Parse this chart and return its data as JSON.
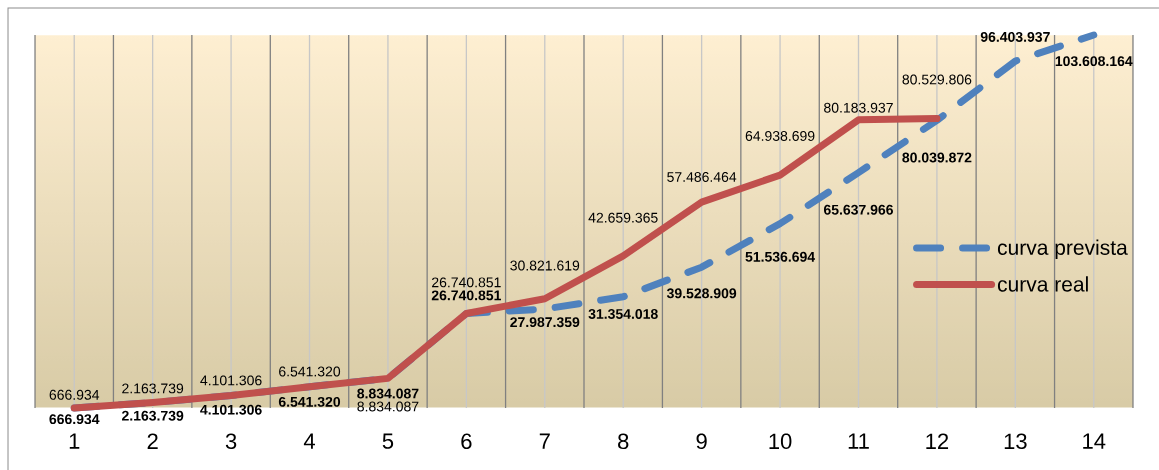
{
  "chart_data": {
    "type": "line",
    "categories": [
      "1",
      "2",
      "3",
      "4",
      "5",
      "6",
      "7",
      "8",
      "9",
      "10",
      "11",
      "12",
      "13",
      "14"
    ],
    "series": [
      {
        "name": "curva prevista",
        "color": "#4f81bd",
        "line_style": "dashed",
        "values": [
          666934,
          2163739,
          4101306,
          6541320,
          8834087,
          26740851,
          27987359,
          31354018,
          39528909,
          51536694,
          65637966,
          80039872,
          96403937,
          103608164
        ],
        "value_labels": [
          "666.934",
          "2.163.739",
          "4.101.306",
          "6.541.320",
          "8.834.087",
          "26.740.851",
          "27.987.359",
          "31.354.018",
          "39.528.909",
          "51.536.694",
          "65.637.966",
          "80.039.872",
          "96.403.937",
          "103.608.164"
        ]
      },
      {
        "name": "curva real",
        "color": "#c0504d",
        "line_style": "solid",
        "values": [
          666934,
          2163739,
          4101306,
          6541320,
          8834087,
          26740851,
          30821619,
          42659365,
          57486464,
          64938699,
          80183937,
          80529806,
          null,
          null
        ],
        "value_labels": [
          "666.934",
          "2.163.739",
          "4.101.306",
          "6.541.320",
          "8.834.087",
          "26.740.851",
          "30.821.619",
          "42.659.365",
          "57.486.464",
          "64.938.699",
          "80.183.937",
          "80.529.806",
          null,
          null
        ]
      }
    ],
    "grid": "x",
    "legend": "right",
    "tick_labels": "x"
  }
}
